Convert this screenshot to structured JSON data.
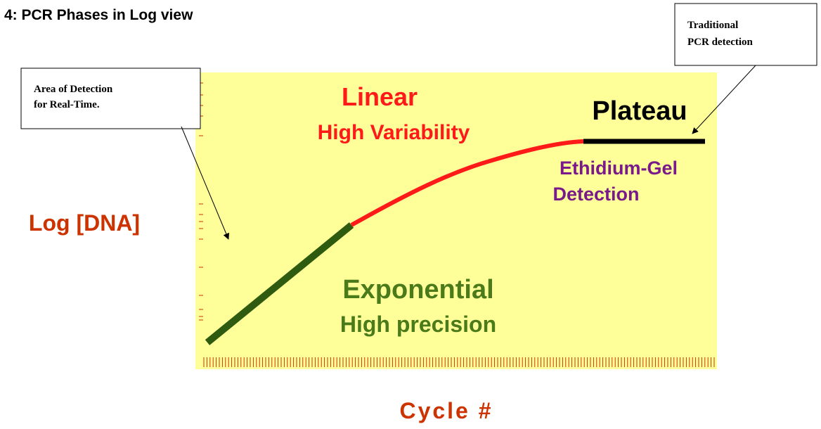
{
  "title": "4: PCR Phases in Log view",
  "y_axis_label": "Log [DNA]",
  "x_axis_label": "Cycle #",
  "phases": {
    "linear": {
      "name": "Linear",
      "note": "High Variability"
    },
    "plateau": {
      "name": "Plateau",
      "note_lines": [
        "Ethidium-Gel",
        "Detection"
      ]
    },
    "exponential": {
      "name": "Exponential",
      "note": "High precision"
    }
  },
  "callouts": [
    {
      "lines": [
        "Area of Detection",
        "for Real-Time."
      ]
    },
    {
      "lines": [
        "Traditional",
        "PCR detection"
      ]
    }
  ]
}
